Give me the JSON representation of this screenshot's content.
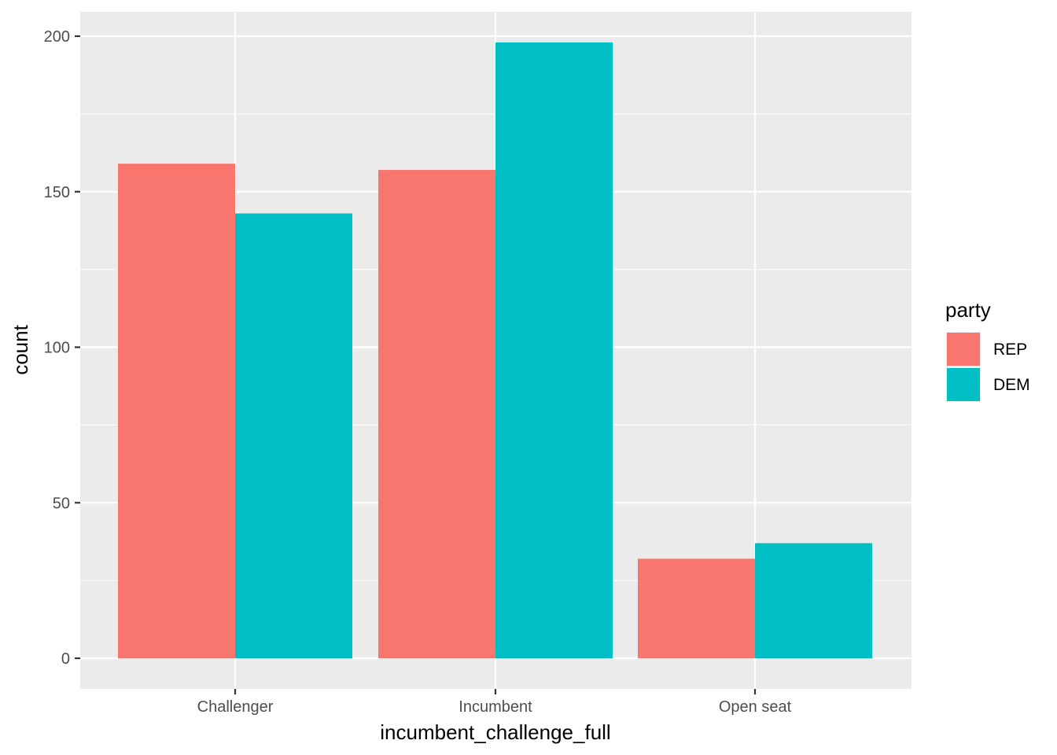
{
  "chart_data": {
    "type": "bar",
    "categories": [
      "Challenger",
      "Incumbent",
      "Open seat"
    ],
    "series": [
      {
        "name": "REP",
        "values": [
          159,
          157,
          32
        ]
      },
      {
        "name": "DEM",
        "values": [
          143,
          198,
          37
        ]
      }
    ],
    "xlabel": "incumbent_challenge_full",
    "ylabel": "count",
    "ylim": [
      0,
      210
    ],
    "yticks": [
      0,
      50,
      100,
      150,
      200
    ],
    "grid": true,
    "legend": {
      "title": "party",
      "position": "right"
    },
    "colors": {
      "REP": "#F8766D",
      "DEM": "#00BFC4",
      "panel": "#EBEBEB",
      "grid": "#FFFFFF"
    }
  }
}
